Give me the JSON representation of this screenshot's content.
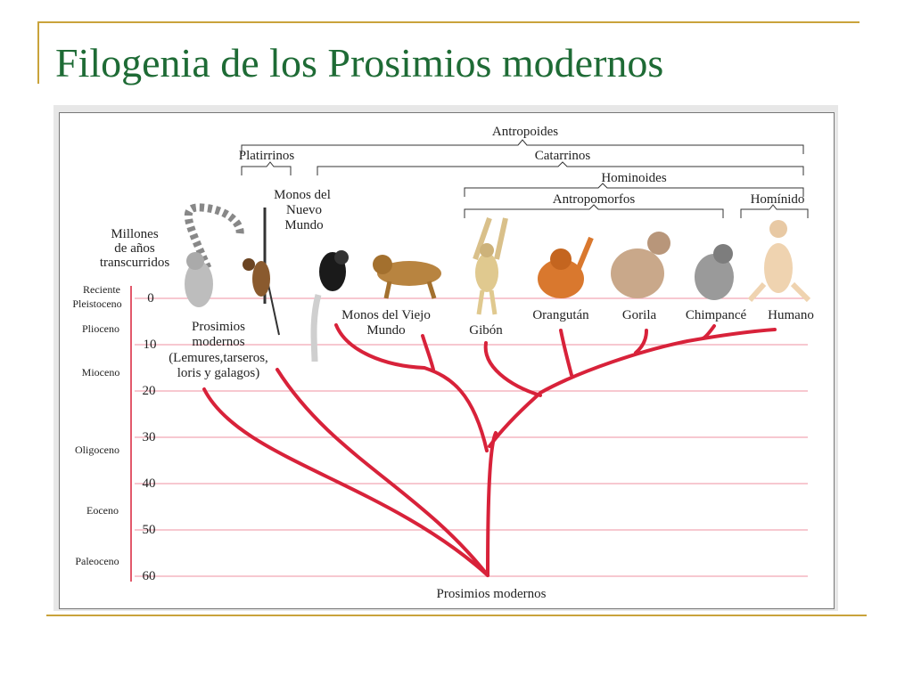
{
  "slide": {
    "title": "Filogenia de los Prosimios modernos",
    "accent_color": "#c9a33b",
    "title_color": "#1e6b35"
  },
  "figure": {
    "line_color": "#d8223a",
    "gridline_color": "#f2a8b4",
    "brackets": {
      "antropoides": "Antropoides",
      "platirrinos": "Platirrinos",
      "catarrinos": "Catarrinos",
      "hominoides": "Hominoides",
      "antropomorfos": "Antropomorfos",
      "hominido": "Homínido"
    },
    "axis": {
      "label_lines": [
        "Millones",
        "de años",
        "transcurridos"
      ],
      "ticks": [
        {
          "value": 0,
          "label": "0"
        },
        {
          "value": 10,
          "label": "10"
        },
        {
          "value": 20,
          "label": "20"
        },
        {
          "value": 30,
          "label": "30"
        },
        {
          "value": 40,
          "label": "40"
        },
        {
          "value": 50,
          "label": "50"
        },
        {
          "value": 60,
          "label": "60"
        }
      ],
      "epochs": [
        "Reciente",
        "Pleistoceno",
        "Plioceno",
        "Mioceno",
        "Oligoceno",
        "Eoceno",
        "Paleoceno"
      ]
    },
    "taxa": {
      "prosimios": [
        "Prosimios",
        "modernos",
        "(Lemures,tarseros,",
        "loris y galagos)"
      ],
      "nuevo_mundo": [
        "Monos del",
        "Nuevo",
        "Mundo"
      ],
      "viejo_mundo": [
        "Monos del Viejo",
        "Mundo"
      ],
      "gibon": "Gibón",
      "orangutan": "Orangután",
      "gorila": "Gorila",
      "chimpance": "Chimpancé",
      "humano": "Humano"
    },
    "root_label": "Prosimios modernos",
    "icons": [
      "lemur-icon",
      "spider-monkey-icon",
      "colobus-monkey-icon",
      "baboon-icon",
      "gibbon-icon",
      "orangutan-icon",
      "gorilla-icon",
      "chimpanzee-icon",
      "human-icon"
    ]
  }
}
